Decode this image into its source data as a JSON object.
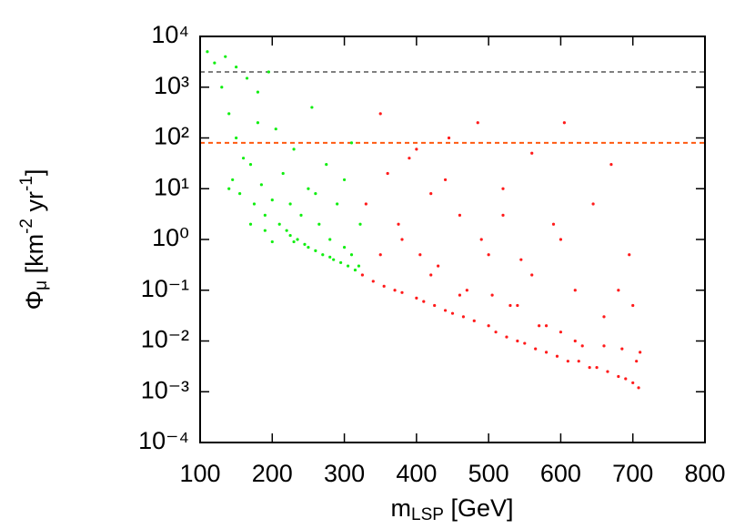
{
  "chart_data": {
    "type": "scatter",
    "x_label_parts": [
      "m",
      "LSP",
      " [GeV]"
    ],
    "y_label_parts": [
      "Φ",
      "μ",
      " [km",
      "-2",
      " yr",
      "-1",
      "]"
    ],
    "xlim": [
      100,
      800
    ],
    "xticks": [
      100,
      200,
      300,
      400,
      500,
      600,
      700,
      800
    ],
    "ylim": [
      0.0001,
      10000
    ],
    "y_log": true,
    "yticks": [
      {
        "value": 0.0001,
        "label": "10⁻⁴"
      },
      {
        "value": 0.001,
        "label": "10⁻³"
      },
      {
        "value": 0.01,
        "label": "10⁻²"
      },
      {
        "value": 0.1,
        "label": "10⁻¹"
      },
      {
        "value": 1,
        "label": "10⁰"
      },
      {
        "value": 10,
        "label": "10¹"
      },
      {
        "value": 100,
        "label": "10²"
      },
      {
        "value": 1000,
        "label": "10³"
      },
      {
        "value": 10000,
        "label": "10⁴"
      }
    ],
    "reference_lines": [
      {
        "value": 2000,
        "color": "#808080"
      },
      {
        "value": 80,
        "color": "#ff5a10"
      }
    ],
    "series": [
      {
        "color": "#11ee11",
        "x": [
          110,
          120,
          135,
          150,
          165,
          180,
          195,
          140,
          150,
          160,
          145,
          140,
          155,
          170,
          175,
          185,
          190,
          200,
          205,
          210,
          215,
          220,
          225,
          230,
          235,
          240,
          245,
          250,
          255,
          260,
          265,
          270,
          275,
          280,
          285,
          290,
          295,
          300,
          305,
          310,
          315,
          320,
          322,
          180,
          200,
          230,
          260,
          300,
          130,
          250,
          280,
          310,
          170,
          190,
          225
        ],
        "values": [
          5000,
          3000,
          4000,
          2500,
          1500,
          800,
          2000,
          300,
          100,
          40,
          15,
          10,
          8,
          30,
          5,
          12,
          3,
          6,
          150,
          2,
          20,
          1.5,
          5,
          60,
          1,
          3,
          0.8,
          10,
          400,
          0.6,
          2,
          0.5,
          30,
          1,
          0.4,
          5,
          0.35,
          0.7,
          0.3,
          80,
          0.25,
          0.3,
          2,
          200,
          0.9,
          0.9,
          8,
          15,
          1000,
          0.7,
          0.45,
          0.5,
          2,
          1.5,
          1.2
        ]
      },
      {
        "color": "#ff1a1a",
        "x": [
          325,
          330,
          340,
          350,
          355,
          360,
          370,
          375,
          380,
          390,
          400,
          405,
          410,
          420,
          425,
          430,
          440,
          445,
          450,
          460,
          465,
          470,
          480,
          485,
          490,
          500,
          505,
          510,
          520,
          525,
          530,
          540,
          545,
          550,
          560,
          565,
          570,
          580,
          590,
          595,
          600,
          605,
          610,
          620,
          625,
          630,
          640,
          645,
          650,
          660,
          665,
          670,
          680,
          685,
          690,
          695,
          700,
          705,
          708,
          710,
          350,
          380,
          420,
          460,
          500,
          540,
          580,
          620,
          660,
          700,
          440,
          520,
          600,
          680,
          400,
          560
        ],
        "values": [
          0.2,
          5,
          0.15,
          300,
          0.12,
          20,
          0.1,
          2,
          0.09,
          40,
          0.07,
          0.5,
          0.06,
          8,
          0.05,
          0.3,
          0.04,
          100,
          0.035,
          3,
          0.03,
          0.1,
          0.025,
          200,
          1,
          0.02,
          0.08,
          0.015,
          10,
          0.012,
          0.05,
          0.01,
          0.4,
          0.009,
          50,
          0.007,
          0.02,
          0.006,
          2,
          0.005,
          0.015,
          200,
          0.004,
          0.1,
          0.004,
          0.008,
          0.003,
          5,
          0.003,
          0.03,
          0.0025,
          30,
          0.002,
          0.007,
          0.0018,
          0.5,
          0.0015,
          0.004,
          0.0012,
          0.006,
          0.5,
          1,
          0.2,
          0.08,
          0.5,
          0.05,
          0.02,
          0.01,
          0.008,
          0.05,
          15,
          3,
          1,
          0.1,
          60,
          0.2
        ]
      }
    ]
  }
}
